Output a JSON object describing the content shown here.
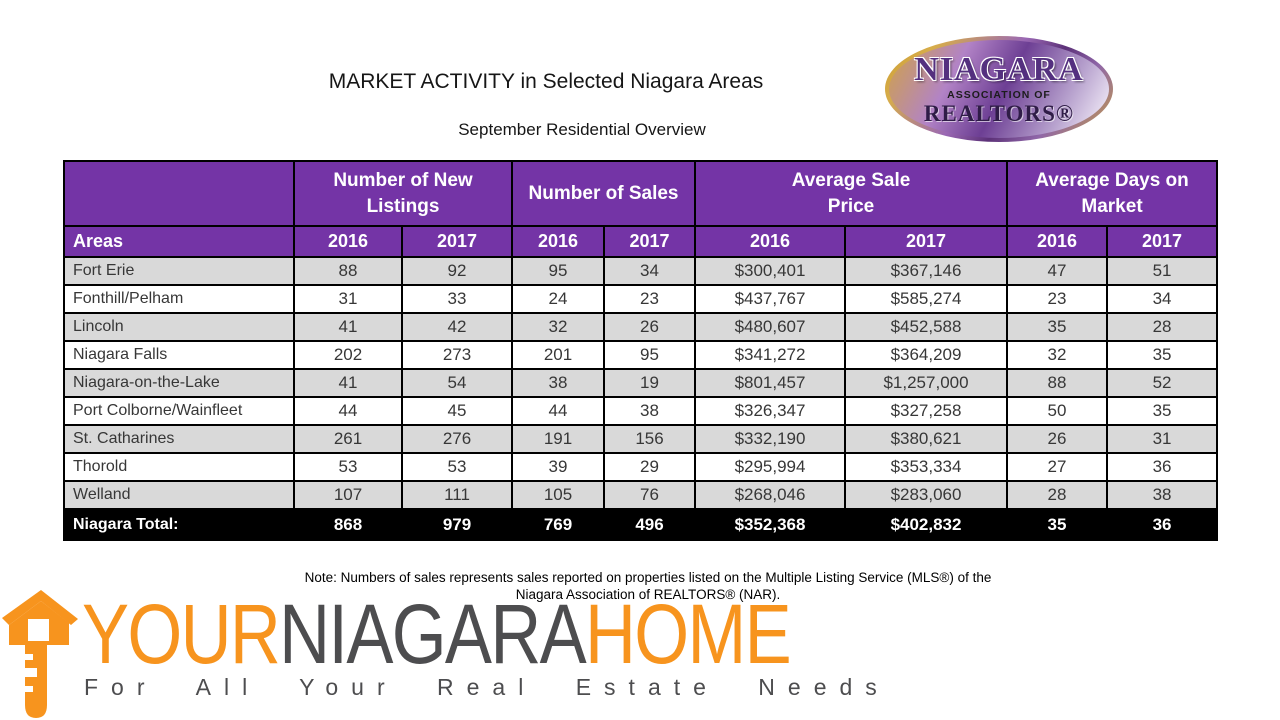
{
  "header": {
    "title": "MARKET ACTIVITY in Selected Niagara Areas",
    "subtitle": "September Residential Overview"
  },
  "nar_logo": {
    "name": "NIAGARA",
    "line2": "ASSOCIATION OF",
    "line3": "REALTORS®"
  },
  "table": {
    "corner_label": "Areas",
    "column_groups": [
      {
        "line1": "Number of New",
        "line2": "Listings"
      },
      {
        "line1": "Number of Sales",
        "line2": ""
      },
      {
        "line1": "Average Sale",
        "line2": "Price"
      },
      {
        "line1": "Average Days on",
        "line2": "Market"
      }
    ],
    "year_headers": [
      "2016",
      "2017",
      "2016",
      "2017",
      "2016",
      "2017",
      "2016",
      "2017"
    ],
    "rows": [
      {
        "area": "Fort Erie",
        "values": [
          "88",
          "92",
          "95",
          "34",
          "$300,401",
          "$367,146",
          "47",
          "51"
        ]
      },
      {
        "area": "Fonthill/Pelham",
        "values": [
          "31",
          "33",
          "24",
          "23",
          "$437,767",
          "$585,274",
          "23",
          "34"
        ]
      },
      {
        "area": "Lincoln",
        "values": [
          "41",
          "42",
          "32",
          "26",
          "$480,607",
          "$452,588",
          "35",
          "28"
        ]
      },
      {
        "area": "Niagara Falls",
        "values": [
          "202",
          "273",
          "201",
          "95",
          "$341,272",
          "$364,209",
          "32",
          "35"
        ]
      },
      {
        "area": "Niagara-on-the-Lake",
        "values": [
          "41",
          "54",
          "38",
          "19",
          "$801,457",
          "$1,257,000",
          "88",
          "52"
        ]
      },
      {
        "area": "Port Colborne/Wainfleet",
        "values": [
          "44",
          "45",
          "44",
          "38",
          "$326,347",
          "$327,258",
          "50",
          "35"
        ]
      },
      {
        "area": "St. Catharines",
        "values": [
          "261",
          "276",
          "191",
          "156",
          "$332,190",
          "$380,621",
          "26",
          "31"
        ]
      },
      {
        "area": "Thorold",
        "values": [
          "53",
          "53",
          "39",
          "29",
          "$295,994",
          "$353,334",
          "27",
          "36"
        ]
      },
      {
        "area": "Welland",
        "values": [
          "107",
          "111",
          "105",
          "76",
          "$268,046",
          "$283,060",
          "28",
          "38"
        ]
      }
    ],
    "total_row": {
      "area": "Niagara Total:",
      "values": [
        "868",
        "979",
        "769",
        "496",
        "$352,368",
        "$402,832",
        "35",
        "36"
      ]
    }
  },
  "note": {
    "line1": "Note: Numbers of sales represents sales reported on properties listed on the Multiple Listing Service (MLS®) of the",
    "line2": "Niagara Association of REALTORS® (NAR)."
  },
  "footer_logo": {
    "word1": "YOUR",
    "word2": "NIAGARA",
    "word3": "HOME",
    "tagline": "For All Your Real Estate Needs"
  },
  "colors": {
    "header_purple": "#7434a6",
    "row_gray": "#d9d9d9",
    "total_black": "#000000",
    "brand_orange": "#f7941e",
    "brand_gray": "#4d4d4f"
  }
}
